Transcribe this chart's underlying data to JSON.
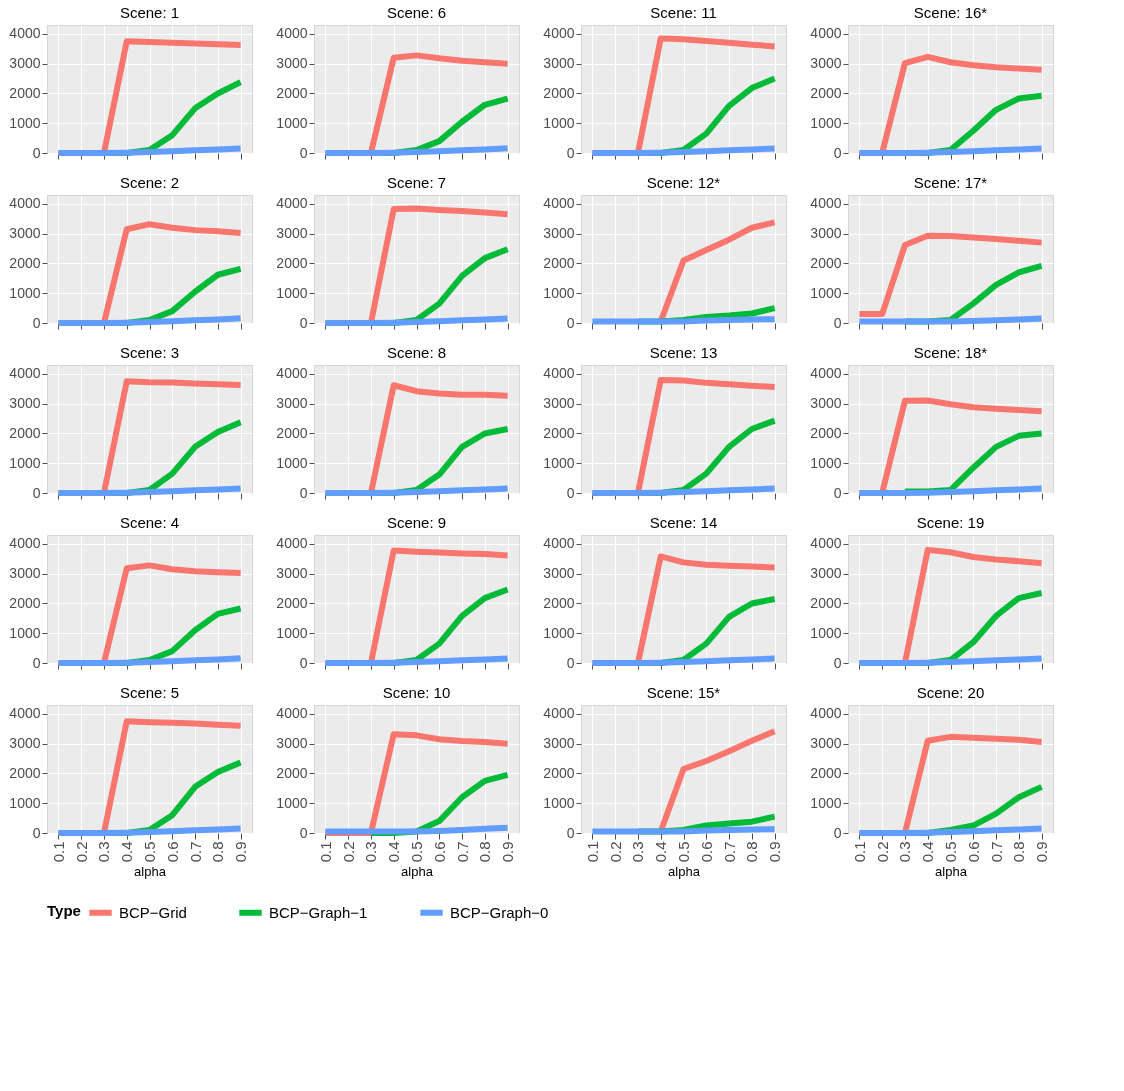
{
  "chart_data": [
    {
      "type": "line",
      "title": "Scene: 1",
      "categories": [
        "0.1",
        "0.2",
        "0.3",
        "0.4",
        "0.5",
        "0.6",
        "0.7",
        "0.8",
        "0.9"
      ],
      "ylim": [
        0,
        4300
      ],
      "yticks": [
        0,
        1000,
        2000,
        3000,
        4000
      ],
      "grid": true,
      "tick_labels": "y",
      "legend": "bottom",
      "legend_title": "Type",
      "series": [
        {
          "name": "BCP−Grid",
          "color": "#f8766d",
          "values": [
            0,
            0,
            0,
            3750,
            3730,
            3700,
            3680,
            3650,
            3630
          ]
        },
        {
          "name": "BCP−Graph−1",
          "color": "#00ba38",
          "values": [
            null,
            null,
            0,
            0,
            100,
            600,
            1500,
            2000,
            2380
          ]
        },
        {
          "name": "BCP−Graph−0",
          "color": "#619cff",
          "values": [
            0,
            0,
            0,
            10,
            30,
            60,
            90,
            120,
            150
          ]
        }
      ]
    },
    {
      "type": "line",
      "title": "Scene: 6",
      "categories": [
        "0.1",
        "0.2",
        "0.3",
        "0.4",
        "0.5",
        "0.6",
        "0.7",
        "0.8",
        "0.9"
      ],
      "ylim": [
        0,
        4300
      ],
      "yticks": [
        0,
        1000,
        2000,
        3000,
        4000
      ],
      "grid": true,
      "tick_labels": "y",
      "series": [
        {
          "name": "BCP−Grid",
          "color": "#f8766d",
          "values": [
            0,
            0,
            0,
            3200,
            3280,
            3180,
            3100,
            3050,
            3000
          ]
        },
        {
          "name": "BCP−Graph−1",
          "color": "#00ba38",
          "values": [
            null,
            null,
            0,
            0,
            100,
            400,
            1050,
            1620,
            1830
          ]
        },
        {
          "name": "BCP−Graph−0",
          "color": "#619cff",
          "values": [
            0,
            0,
            0,
            10,
            30,
            60,
            90,
            120,
            160
          ]
        }
      ]
    },
    {
      "type": "line",
      "title": "Scene: 11",
      "categories": [
        "0.1",
        "0.2",
        "0.3",
        "0.4",
        "0.5",
        "0.6",
        "0.7",
        "0.8",
        "0.9"
      ],
      "ylim": [
        0,
        4300
      ],
      "yticks": [
        0,
        1000,
        2000,
        3000,
        4000
      ],
      "grid": true,
      "tick_labels": "y",
      "series": [
        {
          "name": "BCP−Grid",
          "color": "#f8766d",
          "values": [
            0,
            0,
            0,
            3850,
            3820,
            3760,
            3700,
            3640,
            3580
          ]
        },
        {
          "name": "BCP−Graph−1",
          "color": "#00ba38",
          "values": [
            null,
            null,
            0,
            0,
            100,
            650,
            1580,
            2180,
            2500
          ]
        },
        {
          "name": "BCP−Graph−0",
          "color": "#619cff",
          "values": [
            0,
            0,
            0,
            10,
            30,
            60,
            90,
            120,
            150
          ]
        }
      ]
    },
    {
      "type": "line",
      "title": "Scene: 16*",
      "categories": [
        "0.1",
        "0.2",
        "0.3",
        "0.4",
        "0.5",
        "0.6",
        "0.7",
        "0.8",
        "0.9"
      ],
      "ylim": [
        0,
        4300
      ],
      "yticks": [
        0,
        1000,
        2000,
        3000,
        4000
      ],
      "grid": true,
      "tick_labels": "y",
      "series": [
        {
          "name": "BCP−Grid",
          "color": "#f8766d",
          "values": [
            0,
            0,
            3020,
            3230,
            3050,
            2950,
            2880,
            2840,
            2800
          ]
        },
        {
          "name": "BCP−Graph−1",
          "color": "#00ba38",
          "values": [
            null,
            null,
            0,
            0,
            100,
            750,
            1450,
            1830,
            1920
          ]
        },
        {
          "name": "BCP−Graph−0",
          "color": "#619cff",
          "values": [
            0,
            0,
            0,
            10,
            30,
            60,
            90,
            120,
            150
          ]
        }
      ]
    },
    {
      "type": "line",
      "title": "Scene: 2",
      "categories": [
        "0.1",
        "0.2",
        "0.3",
        "0.4",
        "0.5",
        "0.6",
        "0.7",
        "0.8",
        "0.9"
      ],
      "ylim": [
        0,
        4300
      ],
      "yticks": [
        0,
        1000,
        2000,
        3000,
        4000
      ],
      "grid": true,
      "tick_labels": "y",
      "series": [
        {
          "name": "BCP−Grid",
          "color": "#f8766d",
          "values": [
            0,
            0,
            0,
            3150,
            3320,
            3200,
            3120,
            3080,
            3020
          ]
        },
        {
          "name": "BCP−Graph−1",
          "color": "#00ba38",
          "values": [
            null,
            null,
            0,
            0,
            100,
            400,
            1050,
            1620,
            1820
          ]
        },
        {
          "name": "BCP−Graph−0",
          "color": "#619cff",
          "values": [
            0,
            0,
            0,
            10,
            30,
            60,
            90,
            120,
            160
          ]
        }
      ]
    },
    {
      "type": "line",
      "title": "Scene: 7",
      "categories": [
        "0.1",
        "0.2",
        "0.3",
        "0.4",
        "0.5",
        "0.6",
        "0.7",
        "0.8",
        "0.9"
      ],
      "ylim": [
        0,
        4300
      ],
      "yticks": [
        0,
        1000,
        2000,
        3000,
        4000
      ],
      "grid": true,
      "tick_labels": "y",
      "series": [
        {
          "name": "BCP−Grid",
          "color": "#f8766d",
          "values": [
            0,
            0,
            0,
            3830,
            3850,
            3800,
            3760,
            3710,
            3650
          ]
        },
        {
          "name": "BCP−Graph−1",
          "color": "#00ba38",
          "values": [
            null,
            null,
            0,
            0,
            100,
            650,
            1580,
            2180,
            2480
          ]
        },
        {
          "name": "BCP−Graph−0",
          "color": "#619cff",
          "values": [
            0,
            0,
            0,
            10,
            30,
            60,
            90,
            120,
            150
          ]
        }
      ]
    },
    {
      "type": "line",
      "title": "Scene: 12*",
      "categories": [
        "0.1",
        "0.2",
        "0.3",
        "0.4",
        "0.5",
        "0.6",
        "0.7",
        "0.8",
        "0.9"
      ],
      "ylim": [
        0,
        4300
      ],
      "yticks": [
        0,
        1000,
        2000,
        3000,
        4000
      ],
      "grid": true,
      "tick_labels": "y",
      "series": [
        {
          "name": "BCP−Grid",
          "color": "#f8766d",
          "values": [
            null,
            null,
            null,
            50,
            2100,
            2450,
            2800,
            3200,
            3380
          ]
        },
        {
          "name": "BCP−Graph−1",
          "color": "#00ba38",
          "values": [
            null,
            null,
            50,
            50,
            100,
            200,
            250,
            320,
            500
          ]
        },
        {
          "name": "BCP−Graph−0",
          "color": "#619cff",
          "values": [
            50,
            50,
            50,
            50,
            50,
            80,
            100,
            120,
            130
          ]
        }
      ]
    },
    {
      "type": "line",
      "title": "Scene: 17*",
      "categories": [
        "0.1",
        "0.2",
        "0.3",
        "0.4",
        "0.5",
        "0.6",
        "0.7",
        "0.8",
        "0.9"
      ],
      "ylim": [
        0,
        4300
      ],
      "yticks": [
        0,
        1000,
        2000,
        3000,
        4000
      ],
      "grid": true,
      "tick_labels": "y",
      "series": [
        {
          "name": "BCP−Grid",
          "color": "#f8766d",
          "values": [
            300,
            300,
            2620,
            2930,
            2920,
            2870,
            2820,
            2760,
            2700
          ]
        },
        {
          "name": "BCP−Graph−1",
          "color": "#00ba38",
          "values": [
            null,
            null,
            50,
            50,
            100,
            650,
            1280,
            1700,
            1920
          ]
        },
        {
          "name": "BCP−Graph−0",
          "color": "#619cff",
          "values": [
            50,
            50,
            50,
            50,
            50,
            70,
            90,
            120,
            150
          ]
        }
      ]
    },
    {
      "type": "line",
      "title": "Scene: 3",
      "categories": [
        "0.1",
        "0.2",
        "0.3",
        "0.4",
        "0.5",
        "0.6",
        "0.7",
        "0.8",
        "0.9"
      ],
      "ylim": [
        0,
        4300
      ],
      "yticks": [
        0,
        1000,
        2000,
        3000,
        4000
      ],
      "grid": true,
      "tick_labels": "y",
      "series": [
        {
          "name": "BCP−Grid",
          "color": "#f8766d",
          "values": [
            0,
            0,
            0,
            3750,
            3720,
            3710,
            3680,
            3650,
            3630
          ]
        },
        {
          "name": "BCP−Graph−1",
          "color": "#00ba38",
          "values": [
            null,
            null,
            0,
            0,
            100,
            650,
            1550,
            2050,
            2380
          ]
        },
        {
          "name": "BCP−Graph−0",
          "color": "#619cff",
          "values": [
            0,
            0,
            0,
            10,
            30,
            60,
            90,
            120,
            150
          ]
        }
      ]
    },
    {
      "type": "line",
      "title": "Scene: 8",
      "categories": [
        "0.1",
        "0.2",
        "0.3",
        "0.4",
        "0.5",
        "0.6",
        "0.7",
        "0.8",
        "0.9"
      ],
      "ylim": [
        0,
        4300
      ],
      "yticks": [
        0,
        1000,
        2000,
        3000,
        4000
      ],
      "grid": true,
      "tick_labels": "y",
      "series": [
        {
          "name": "BCP−Grid",
          "color": "#f8766d",
          "values": [
            0,
            0,
            0,
            3620,
            3420,
            3340,
            3300,
            3300,
            3270
          ]
        },
        {
          "name": "BCP−Graph−1",
          "color": "#00ba38",
          "values": [
            null,
            null,
            0,
            0,
            100,
            620,
            1550,
            2000,
            2150
          ]
        },
        {
          "name": "BCP−Graph−0",
          "color": "#619cff",
          "values": [
            0,
            0,
            0,
            10,
            30,
            60,
            90,
            120,
            150
          ]
        }
      ]
    },
    {
      "type": "line",
      "title": "Scene: 13",
      "categories": [
        "0.1",
        "0.2",
        "0.3",
        "0.4",
        "0.5",
        "0.6",
        "0.7",
        "0.8",
        "0.9"
      ],
      "ylim": [
        0,
        4300
      ],
      "yticks": [
        0,
        1000,
        2000,
        3000,
        4000
      ],
      "grid": true,
      "tick_labels": "y",
      "series": [
        {
          "name": "BCP−Grid",
          "color": "#f8766d",
          "values": [
            0,
            0,
            0,
            3800,
            3780,
            3700,
            3650,
            3600,
            3560
          ]
        },
        {
          "name": "BCP−Graph−1",
          "color": "#00ba38",
          "values": [
            null,
            null,
            0,
            0,
            100,
            650,
            1550,
            2150,
            2430
          ]
        },
        {
          "name": "BCP−Graph−0",
          "color": "#619cff",
          "values": [
            0,
            0,
            0,
            10,
            30,
            60,
            90,
            120,
            150
          ]
        }
      ]
    },
    {
      "type": "line",
      "title": "Scene: 18*",
      "categories": [
        "0.1",
        "0.2",
        "0.3",
        "0.4",
        "0.5",
        "0.6",
        "0.7",
        "0.8",
        "0.9"
      ],
      "ylim": [
        0,
        4300
      ],
      "yticks": [
        0,
        1000,
        2000,
        3000,
        4000
      ],
      "grid": true,
      "tick_labels": "y",
      "series": [
        {
          "name": "BCP−Grid",
          "color": "#f8766d",
          "values": [
            0,
            0,
            3100,
            3110,
            2980,
            2880,
            2830,
            2790,
            2750
          ]
        },
        {
          "name": "BCP−Graph−1",
          "color": "#00ba38",
          "values": [
            null,
            null,
            50,
            50,
            100,
            850,
            1550,
            1920,
            2000
          ]
        },
        {
          "name": "BCP−Graph−0",
          "color": "#619cff",
          "values": [
            0,
            0,
            0,
            10,
            30,
            60,
            90,
            120,
            150
          ]
        }
      ]
    },
    {
      "type": "line",
      "title": "Scene: 4",
      "categories": [
        "0.1",
        "0.2",
        "0.3",
        "0.4",
        "0.5",
        "0.6",
        "0.7",
        "0.8",
        "0.9"
      ],
      "ylim": [
        0,
        4300
      ],
      "yticks": [
        0,
        1000,
        2000,
        3000,
        4000
      ],
      "grid": true,
      "tick_labels": "y",
      "series": [
        {
          "name": "BCP−Grid",
          "color": "#f8766d",
          "values": [
            0,
            0,
            0,
            3180,
            3280,
            3150,
            3080,
            3050,
            3020
          ]
        },
        {
          "name": "BCP−Graph−1",
          "color": "#00ba38",
          "values": [
            null,
            null,
            0,
            0,
            100,
            400,
            1100,
            1650,
            1830
          ]
        },
        {
          "name": "BCP−Graph−0",
          "color": "#619cff",
          "values": [
            0,
            0,
            0,
            10,
            30,
            60,
            90,
            120,
            160
          ]
        }
      ]
    },
    {
      "type": "line",
      "title": "Scene: 9",
      "categories": [
        "0.1",
        "0.2",
        "0.3",
        "0.4",
        "0.5",
        "0.6",
        "0.7",
        "0.8",
        "0.9"
      ],
      "ylim": [
        0,
        4300
      ],
      "yticks": [
        0,
        1000,
        2000,
        3000,
        4000
      ],
      "grid": true,
      "tick_labels": "y",
      "series": [
        {
          "name": "BCP−Grid",
          "color": "#f8766d",
          "values": [
            0,
            0,
            0,
            3780,
            3740,
            3710,
            3680,
            3660,
            3610
          ]
        },
        {
          "name": "BCP−Graph−1",
          "color": "#00ba38",
          "values": [
            null,
            null,
            0,
            0,
            100,
            650,
            1580,
            2180,
            2470
          ]
        },
        {
          "name": "BCP−Graph−0",
          "color": "#619cff",
          "values": [
            0,
            0,
            0,
            10,
            30,
            60,
            90,
            120,
            150
          ]
        }
      ]
    },
    {
      "type": "line",
      "title": "Scene: 14",
      "categories": [
        "0.1",
        "0.2",
        "0.3",
        "0.4",
        "0.5",
        "0.6",
        "0.7",
        "0.8",
        "0.9"
      ],
      "ylim": [
        0,
        4300
      ],
      "yticks": [
        0,
        1000,
        2000,
        3000,
        4000
      ],
      "grid": true,
      "tick_labels": "y",
      "series": [
        {
          "name": "BCP−Grid",
          "color": "#f8766d",
          "values": [
            0,
            0,
            0,
            3580,
            3380,
            3300,
            3270,
            3240,
            3210
          ]
        },
        {
          "name": "BCP−Graph−1",
          "color": "#00ba38",
          "values": [
            null,
            null,
            0,
            0,
            100,
            650,
            1550,
            2000,
            2150
          ]
        },
        {
          "name": "BCP−Graph−0",
          "color": "#619cff",
          "values": [
            0,
            0,
            0,
            10,
            30,
            60,
            90,
            120,
            150
          ]
        }
      ]
    },
    {
      "type": "line",
      "title": "Scene: 19",
      "categories": [
        "0.1",
        "0.2",
        "0.3",
        "0.4",
        "0.5",
        "0.6",
        "0.7",
        "0.8",
        "0.9"
      ],
      "ylim": [
        0,
        4300
      ],
      "yticks": [
        0,
        1000,
        2000,
        3000,
        4000
      ],
      "grid": true,
      "tick_labels": "y",
      "series": [
        {
          "name": "BCP−Grid",
          "color": "#f8766d",
          "values": [
            0,
            0,
            0,
            3800,
            3720,
            3560,
            3480,
            3420,
            3350
          ]
        },
        {
          "name": "BCP−Graph−1",
          "color": "#00ba38",
          "values": [
            null,
            null,
            0,
            0,
            100,
            700,
            1580,
            2180,
            2350
          ]
        },
        {
          "name": "BCP−Graph−0",
          "color": "#619cff",
          "values": [
            0,
            0,
            0,
            10,
            30,
            60,
            90,
            120,
            150
          ]
        }
      ]
    },
    {
      "type": "line",
      "title": "Scene: 5",
      "xlabel": "alpha",
      "categories": [
        "0.1",
        "0.2",
        "0.3",
        "0.4",
        "0.5",
        "0.6",
        "0.7",
        "0.8",
        "0.9"
      ],
      "ylim": [
        0,
        4300
      ],
      "yticks": [
        0,
        1000,
        2000,
        3000,
        4000
      ],
      "grid": true,
      "series": [
        {
          "name": "BCP−Grid",
          "color": "#f8766d",
          "values": [
            0,
            0,
            0,
            3750,
            3720,
            3700,
            3680,
            3640,
            3600
          ]
        },
        {
          "name": "BCP−Graph−1",
          "color": "#00ba38",
          "values": [
            null,
            null,
            0,
            0,
            100,
            600,
            1550,
            2050,
            2370
          ]
        },
        {
          "name": "BCP−Graph−0",
          "color": "#619cff",
          "values": [
            0,
            0,
            0,
            10,
            30,
            60,
            90,
            120,
            150
          ]
        }
      ]
    },
    {
      "type": "line",
      "title": "Scene: 10",
      "xlabel": "alpha",
      "categories": [
        "0.1",
        "0.2",
        "0.3",
        "0.4",
        "0.5",
        "0.6",
        "0.7",
        "0.8",
        "0.9"
      ],
      "ylim": [
        0,
        4300
      ],
      "yticks": [
        0,
        1000,
        2000,
        3000,
        4000
      ],
      "grid": true,
      "series": [
        {
          "name": "BCP−Grid",
          "color": "#f8766d",
          "values": [
            0,
            0,
            0,
            3320,
            3280,
            3150,
            3090,
            3060,
            3000
          ]
        },
        {
          "name": "BCP−Graph−1",
          "color": "#00ba38",
          "values": [
            null,
            null,
            0,
            0,
            50,
            400,
            1200,
            1750,
            1950
          ]
        },
        {
          "name": "BCP−Graph−0",
          "color": "#619cff",
          "values": [
            50,
            50,
            50,
            50,
            50,
            70,
            100,
            140,
            180
          ]
        }
      ]
    },
    {
      "type": "line",
      "title": "Scene: 15*",
      "xlabel": "alpha",
      "categories": [
        "0.1",
        "0.2",
        "0.3",
        "0.4",
        "0.5",
        "0.6",
        "0.7",
        "0.8",
        "0.9"
      ],
      "ylim": [
        0,
        4300
      ],
      "yticks": [
        0,
        1000,
        2000,
        3000,
        4000
      ],
      "grid": true,
      "series": [
        {
          "name": "BCP−Grid",
          "color": "#f8766d",
          "values": [
            null,
            null,
            null,
            50,
            2150,
            2420,
            2750,
            3100,
            3420
          ]
        },
        {
          "name": "BCP−Graph−1",
          "color": "#00ba38",
          "values": [
            null,
            null,
            50,
            50,
            100,
            250,
            320,
            380,
            550
          ]
        },
        {
          "name": "BCP−Graph−0",
          "color": "#619cff",
          "values": [
            50,
            50,
            50,
            50,
            50,
            80,
            100,
            120,
            130
          ]
        }
      ]
    },
    {
      "type": "line",
      "title": "Scene: 20",
      "xlabel": "alpha",
      "categories": [
        "0.1",
        "0.2",
        "0.3",
        "0.4",
        "0.5",
        "0.6",
        "0.7",
        "0.8",
        "0.9"
      ],
      "ylim": [
        0,
        4300
      ],
      "yticks": [
        0,
        1000,
        2000,
        3000,
        4000
      ],
      "grid": true,
      "series": [
        {
          "name": "BCP−Grid",
          "color": "#f8766d",
          "values": [
            0,
            0,
            0,
            3100,
            3230,
            3200,
            3170,
            3130,
            3060
          ]
        },
        {
          "name": "BCP−Graph−1",
          "color": "#00ba38",
          "values": [
            null,
            null,
            0,
            0,
            100,
            250,
            650,
            1200,
            1550
          ]
        },
        {
          "name": "BCP−Graph−0",
          "color": "#619cff",
          "values": [
            0,
            0,
            0,
            10,
            30,
            60,
            90,
            120,
            150
          ]
        }
      ]
    }
  ]
}
